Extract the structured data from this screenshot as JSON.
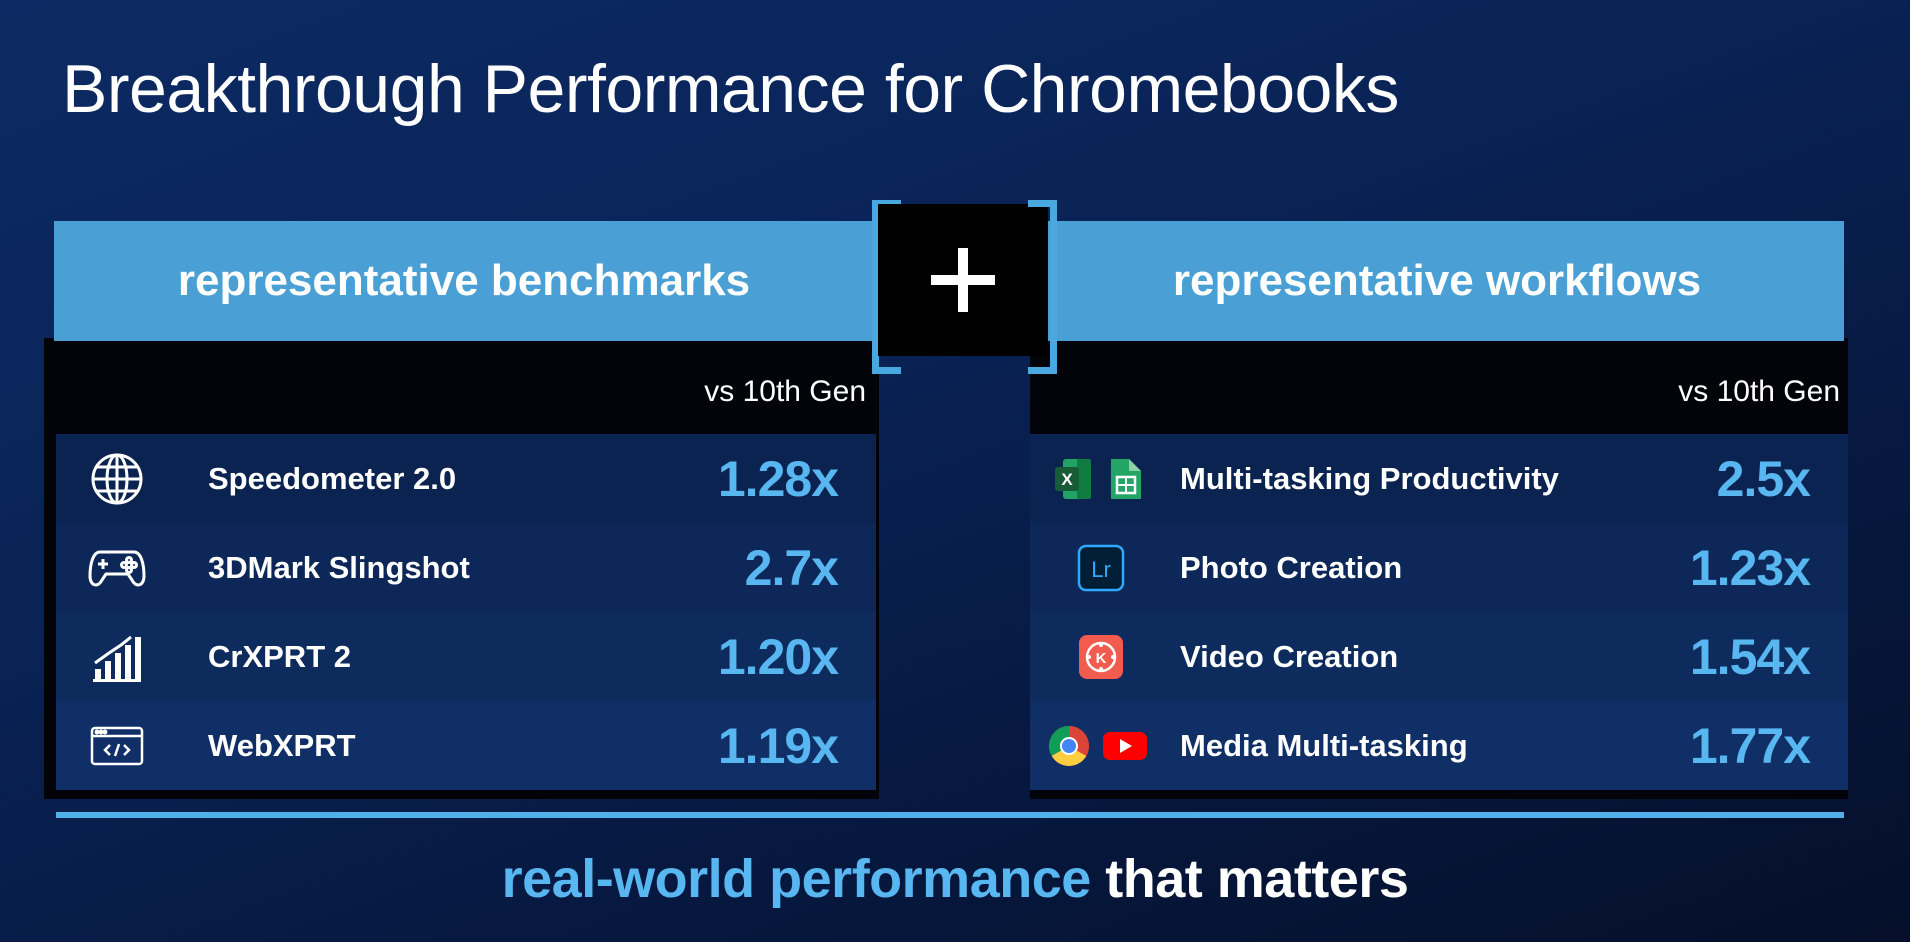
{
  "title": "Breakthrough Performance for Chromebooks",
  "left": {
    "header": "representative benchmarks",
    "vs_label": "vs 10th  Gen",
    "rows": [
      {
        "icon": "globe-icon",
        "name": "Speedometer 2.0",
        "value": "1.28x"
      },
      {
        "icon": "gamepad-icon",
        "name": "3DMark Slingshot",
        "value": "2.7x"
      },
      {
        "icon": "bar-chart-icon",
        "name": "CrXPRT 2",
        "value": "1.20x"
      },
      {
        "icon": "browser-code-icon",
        "name": "WebXPRT",
        "value": "1.19x"
      }
    ]
  },
  "plus": "+",
  "right": {
    "header": "representative workflows",
    "vs_label": "vs 10th  Gen",
    "rows": [
      {
        "icon": "excel-sheets-icons",
        "name": "Multi-tasking Productivity",
        "value": "2.5x"
      },
      {
        "icon": "lightroom-icon",
        "name": "Photo Creation",
        "value": "1.23x",
        "icon_text": "Lr"
      },
      {
        "icon": "kinemaster-icon",
        "name": "Video Creation",
        "value": "1.54x",
        "icon_text": "K"
      },
      {
        "icon": "chrome-youtube-icons",
        "name": "Media Multi-tasking",
        "value": "1.77x"
      }
    ]
  },
  "tagline": {
    "accent": "real-world performance",
    "rest": " that matters"
  },
  "colors": {
    "accent": "#58b6f0",
    "header_bar": "#4aa0d4",
    "bracket": "#4aa8e0"
  }
}
